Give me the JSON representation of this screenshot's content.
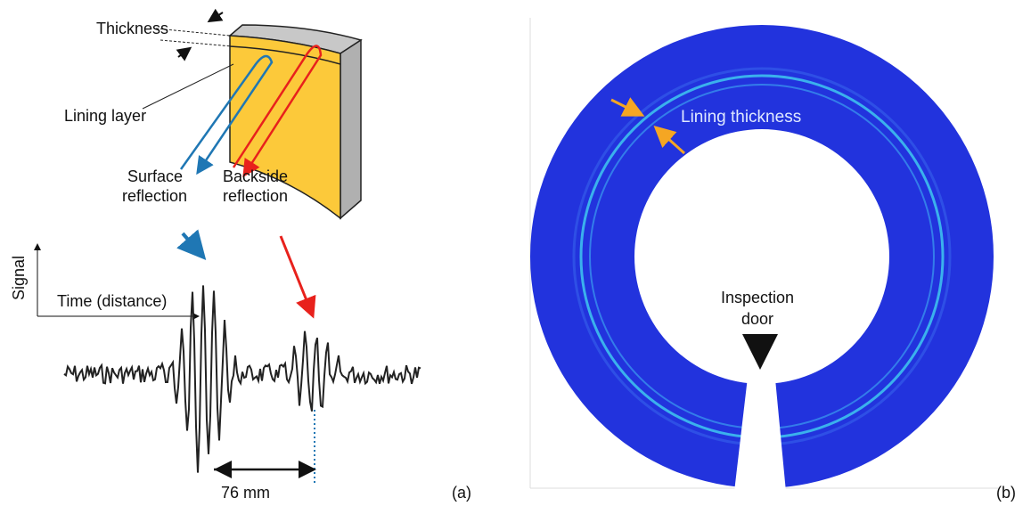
{
  "panel_a": {
    "thickness": "Thickness",
    "lining_layer": "Lining layer",
    "surface_reflection": [
      "Surface",
      "reflection"
    ],
    "backside_reflection": [
      "Backside",
      "reflection"
    ],
    "signal_axis": "Signal",
    "time_axis": "Time (distance)",
    "distance": "76 mm",
    "label": "(a)"
  },
  "panel_b": {
    "lining_thickness": "Lining thickness",
    "inspection_door": [
      "Inspection",
      "door"
    ],
    "label": "(b)"
  }
}
